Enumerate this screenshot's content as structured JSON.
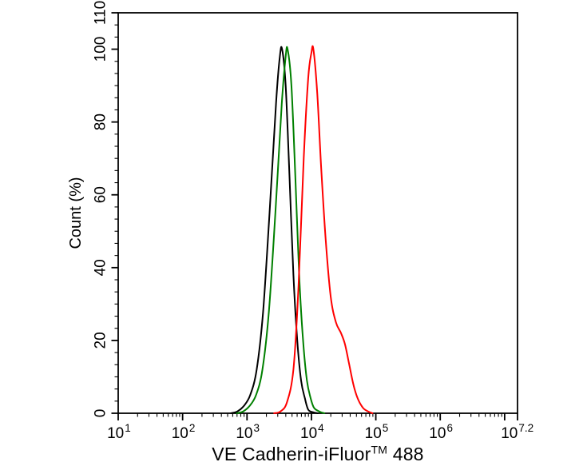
{
  "figure": {
    "background": "#ffffff",
    "frame_color": "#000000"
  },
  "chart_data": {
    "type": "line",
    "subtype": "flow-cytometry-histogram-overlay",
    "title": {
      "main": "VE Cadherin-iFluor",
      "sup": "TM",
      "suffix": " 488"
    },
    "x_axis": {
      "scale": "log10",
      "min": 1,
      "max": 7.2,
      "tick_base": "10",
      "major_tick_exponents": [
        1,
        2,
        3,
        4,
        5,
        6,
        7,
        7.2
      ],
      "labeled_exponents": [
        "1",
        "2",
        "3",
        "4",
        "5",
        "6",
        "7.2"
      ],
      "minor_mantissas": [
        2,
        3,
        4,
        5,
        6,
        7,
        8,
        9
      ]
    },
    "y_axis": {
      "label": "Count (%)",
      "min": 0,
      "max": 110,
      "labeled_ticks": [
        0,
        20,
        40,
        60,
        80,
        100,
        110
      ],
      "minor_tick_step": 3.3333
    },
    "grid": "off",
    "legend": "none",
    "series": [
      {
        "name": "black",
        "color": "#000000",
        "points": [
          [
            2.75,
            0
          ],
          [
            2.85,
            0.5
          ],
          [
            2.95,
            2
          ],
          [
            3.05,
            5
          ],
          [
            3.15,
            12
          ],
          [
            3.25,
            28
          ],
          [
            3.35,
            55
          ],
          [
            3.45,
            85
          ],
          [
            3.51,
            98
          ],
          [
            3.545,
            100
          ],
          [
            3.6,
            90
          ],
          [
            3.66,
            65
          ],
          [
            3.72,
            38
          ],
          [
            3.78,
            20
          ],
          [
            3.84,
            9
          ],
          [
            3.9,
            4
          ],
          [
            3.95,
            1
          ],
          [
            4.02,
            0.3
          ],
          [
            4.1,
            0
          ]
        ]
      },
      {
        "name": "green",
        "color": "#008000",
        "points": [
          [
            2.84,
            0
          ],
          [
            2.94,
            0.5
          ],
          [
            3.04,
            2
          ],
          [
            3.14,
            5
          ],
          [
            3.24,
            12
          ],
          [
            3.34,
            28
          ],
          [
            3.44,
            55
          ],
          [
            3.54,
            85
          ],
          [
            3.6,
            98
          ],
          [
            3.63,
            100
          ],
          [
            3.69,
            90
          ],
          [
            3.75,
            65
          ],
          [
            3.81,
            38
          ],
          [
            3.87,
            20
          ],
          [
            3.93,
            9
          ],
          [
            3.99,
            4
          ],
          [
            4.04,
            1.5
          ],
          [
            4.12,
            0.5
          ],
          [
            4.2,
            0
          ]
        ]
      },
      {
        "name": "red",
        "color": "#ff0000",
        "points": [
          [
            3.42,
            0
          ],
          [
            3.52,
            0.5
          ],
          [
            3.62,
            3
          ],
          [
            3.72,
            12
          ],
          [
            3.8,
            35
          ],
          [
            3.88,
            70
          ],
          [
            3.95,
            92
          ],
          [
            4.0,
            99
          ],
          [
            4.03,
            100
          ],
          [
            4.09,
            88
          ],
          [
            4.15,
            68
          ],
          [
            4.22,
            48
          ],
          [
            4.3,
            32
          ],
          [
            4.38,
            25
          ],
          [
            4.46,
            22
          ],
          [
            4.52,
            19
          ],
          [
            4.58,
            14
          ],
          [
            4.65,
            8
          ],
          [
            4.72,
            4
          ],
          [
            4.8,
            1.5
          ],
          [
            4.88,
            0.5
          ],
          [
            4.95,
            0
          ]
        ]
      }
    ]
  }
}
